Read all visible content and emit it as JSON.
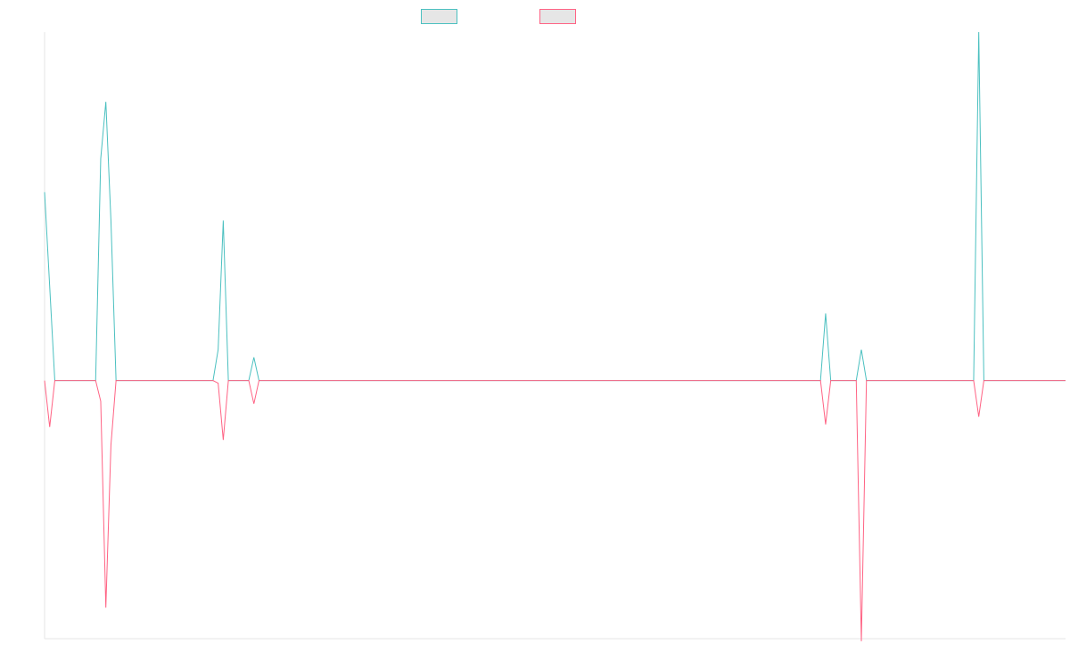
{
  "colors": {
    "series_1": "#4bc0c0",
    "series_2": "#ff6384",
    "legend_fill": "#e6e6e6",
    "axis": "#e5e5e5"
  },
  "chart_data": {
    "type": "line",
    "legend": {
      "position": "top-center",
      "entries": [
        "",
        ""
      ]
    },
    "xlabel": "",
    "ylabel": "",
    "grid": false,
    "ticks_visible": false,
    "x_count": 200,
    "y_baseline": 0,
    "ylim": [
      -100,
      135
    ],
    "series": [
      {
        "color": "#4bc0c0",
        "points": [
          [
            0,
            73
          ],
          [
            2,
            0
          ],
          [
            10,
            0
          ],
          [
            11,
            86
          ],
          [
            12,
            108
          ],
          [
            13,
            62
          ],
          [
            14,
            0
          ],
          [
            16,
            0
          ],
          [
            17,
            0
          ],
          [
            33,
            0
          ],
          [
            34,
            12
          ],
          [
            35,
            62
          ],
          [
            36,
            0
          ],
          [
            40,
            0
          ],
          [
            41,
            9
          ],
          [
            42,
            0
          ],
          [
            152,
            0
          ],
          [
            153,
            26
          ],
          [
            154,
            0
          ],
          [
            159,
            0
          ],
          [
            160,
            12
          ],
          [
            161,
            0
          ],
          [
            175,
            0
          ],
          [
            176,
            0
          ],
          [
            182,
            0
          ],
          [
            183,
            135
          ],
          [
            184,
            0
          ],
          [
            200,
            0
          ]
        ]
      },
      {
        "color": "#ff6384",
        "points": [
          [
            0,
            0
          ],
          [
            1,
            -18
          ],
          [
            2,
            0
          ],
          [
            10,
            0
          ],
          [
            11,
            -8
          ],
          [
            12,
            -88
          ],
          [
            13,
            -25
          ],
          [
            14,
            0
          ],
          [
            16,
            0
          ],
          [
            17,
            0
          ],
          [
            33,
            0
          ],
          [
            34,
            -1
          ],
          [
            35,
            -23
          ],
          [
            36,
            0
          ],
          [
            40,
            0
          ],
          [
            41,
            -9
          ],
          [
            42,
            0
          ],
          [
            152,
            0
          ],
          [
            153,
            -17
          ],
          [
            154,
            0
          ],
          [
            159,
            0
          ],
          [
            160,
            -101
          ],
          [
            161,
            0
          ],
          [
            175,
            0
          ],
          [
            176,
            0
          ],
          [
            182,
            0
          ],
          [
            183,
            -14
          ],
          [
            184,
            0
          ],
          [
            200,
            0
          ]
        ]
      }
    ]
  }
}
